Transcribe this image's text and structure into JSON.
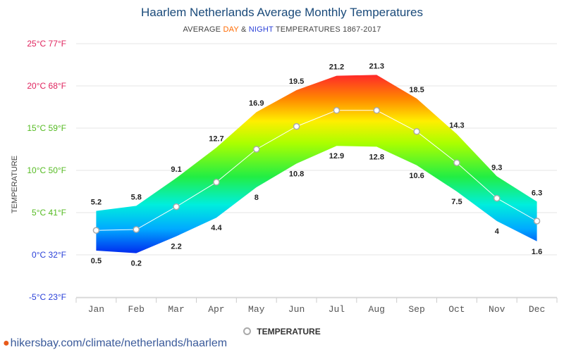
{
  "title": "Haarlem Netherlands Average Monthly Temperatures",
  "subtitle": {
    "prefix": "AVERAGE ",
    "day": "DAY",
    "mid": " & ",
    "night": "NIGHT",
    "suffix": " TEMPERATURES 1867-2017"
  },
  "legend_label": "TEMPERATURE",
  "footer": "hikersbay.com/climate/netherlands/haarlem",
  "colors": {
    "day": "#ff6a00",
    "night": "#2a40d8",
    "title": "#1a4a7a",
    "mean_line": "#ffffff",
    "marker_border": "#aaaaaa"
  },
  "chart_data": {
    "type": "area",
    "ylabel": "TEMPERATURE",
    "ylim": [
      -5,
      25
    ],
    "yticks": [
      {
        "value": 25,
        "label": "25°C 77°F",
        "color": "#e0245e"
      },
      {
        "value": 20,
        "label": "20°C 68°F",
        "color": "#e0245e"
      },
      {
        "value": 15,
        "label": "15°C 59°F",
        "color": "#55bb22"
      },
      {
        "value": 10,
        "label": "10°C 50°F",
        "color": "#55bb22"
      },
      {
        "value": 5,
        "label": "5°C 41°F",
        "color": "#55bb22"
      },
      {
        "value": 0,
        "label": "0°C 32°F",
        "color": "#2a40d8"
      },
      {
        "value": -5,
        "label": "-5°C 23°F",
        "color": "#2a40d8"
      }
    ],
    "categories": [
      "Jan",
      "Feb",
      "Mar",
      "Apr",
      "May",
      "Jun",
      "Jul",
      "Aug",
      "Sep",
      "Oct",
      "Nov",
      "Dec"
    ],
    "series": [
      {
        "name": "DAY",
        "values": [
          5.2,
          5.8,
          9.1,
          12.7,
          16.9,
          19.5,
          21.2,
          21.3,
          18.5,
          14.3,
          9.3,
          6.3
        ]
      },
      {
        "name": "NIGHT",
        "values": [
          0.5,
          0.2,
          2.2,
          4.4,
          8,
          10.8,
          12.9,
          12.8,
          10.6,
          7.5,
          4,
          1.6
        ]
      },
      {
        "name": "TEMPERATURE",
        "values": [
          2.9,
          3.0,
          5.7,
          8.6,
          12.5,
          15.2,
          17.1,
          17.1,
          14.6,
          10.9,
          6.7,
          4.0
        ]
      }
    ],
    "legend_position": "bottom",
    "grid": true
  }
}
